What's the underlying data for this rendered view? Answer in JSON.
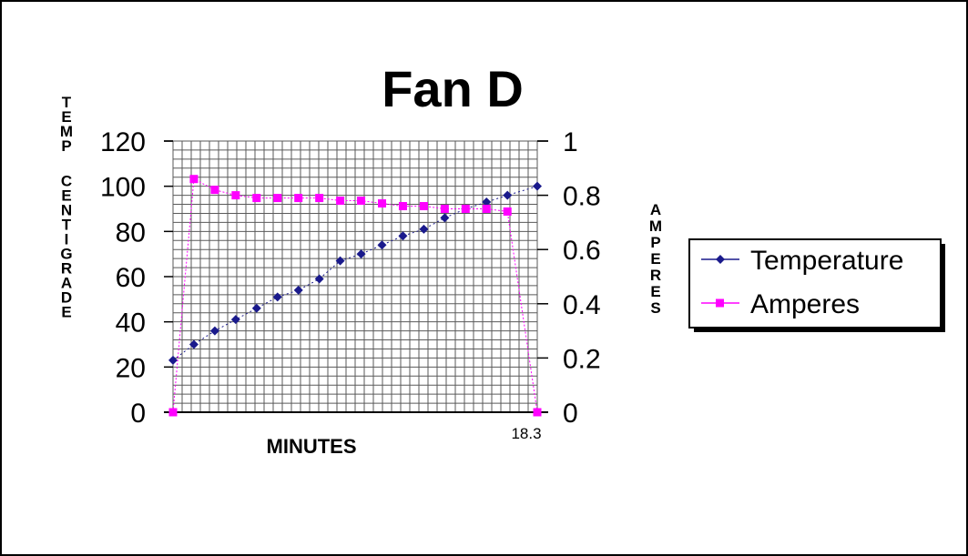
{
  "chart_data": {
    "type": "line",
    "title": "Fan D",
    "xlabel": "MINUTES",
    "x_tick_label": "18.3",
    "ylabel_left": "TEMP CENTIGRADE",
    "ylabel_right": "AMPERES",
    "y_left_ticks": [
      "0",
      "20",
      "40",
      "60",
      "80",
      "100",
      "120"
    ],
    "y_right_ticks": [
      "0",
      "0.2",
      "0.4",
      "0.6",
      "0.8",
      "1"
    ],
    "ylim_left": [
      0,
      120
    ],
    "ylim_right": [
      0,
      1
    ],
    "xlim": [
      0,
      18.3
    ],
    "grid": true,
    "legend_position": "right",
    "series": [
      {
        "name": "Temperature",
        "axis": "left",
        "color": "#1a1a8c",
        "marker": "diamond",
        "points": [
          [
            0,
            23
          ],
          [
            1.05,
            30
          ],
          [
            2.1,
            36
          ],
          [
            3.15,
            41
          ],
          [
            4.2,
            46
          ],
          [
            5.25,
            51
          ],
          [
            6.3,
            54
          ],
          [
            7.35,
            59
          ],
          [
            8.4,
            67
          ],
          [
            9.45,
            70
          ],
          [
            10.5,
            74
          ],
          [
            11.55,
            78
          ],
          [
            12.6,
            81
          ],
          [
            13.65,
            86
          ],
          [
            14.7,
            90
          ],
          [
            15.75,
            93
          ],
          [
            16.8,
            96
          ],
          [
            18.3,
            100
          ]
        ]
      },
      {
        "name": "Amperes",
        "axis": "right",
        "color": "#ff00ff",
        "marker": "square",
        "points": [
          [
            0,
            0
          ],
          [
            1.05,
            0.86
          ],
          [
            2.1,
            0.82
          ],
          [
            3.15,
            0.8
          ],
          [
            4.2,
            0.79
          ],
          [
            5.25,
            0.79
          ],
          [
            6.3,
            0.79
          ],
          [
            7.35,
            0.79
          ],
          [
            8.4,
            0.78
          ],
          [
            9.45,
            0.78
          ],
          [
            10.5,
            0.77
          ],
          [
            11.55,
            0.76
          ],
          [
            12.6,
            0.76
          ],
          [
            13.65,
            0.75
          ],
          [
            14.7,
            0.75
          ],
          [
            15.75,
            0.75
          ],
          [
            16.8,
            0.74
          ],
          [
            18.3,
            0
          ]
        ]
      }
    ]
  },
  "colors": {
    "grid": "#5a5a5a",
    "axis": "#000000",
    "temperature": "#1a1a8c",
    "amperes": "#ff00ff"
  }
}
